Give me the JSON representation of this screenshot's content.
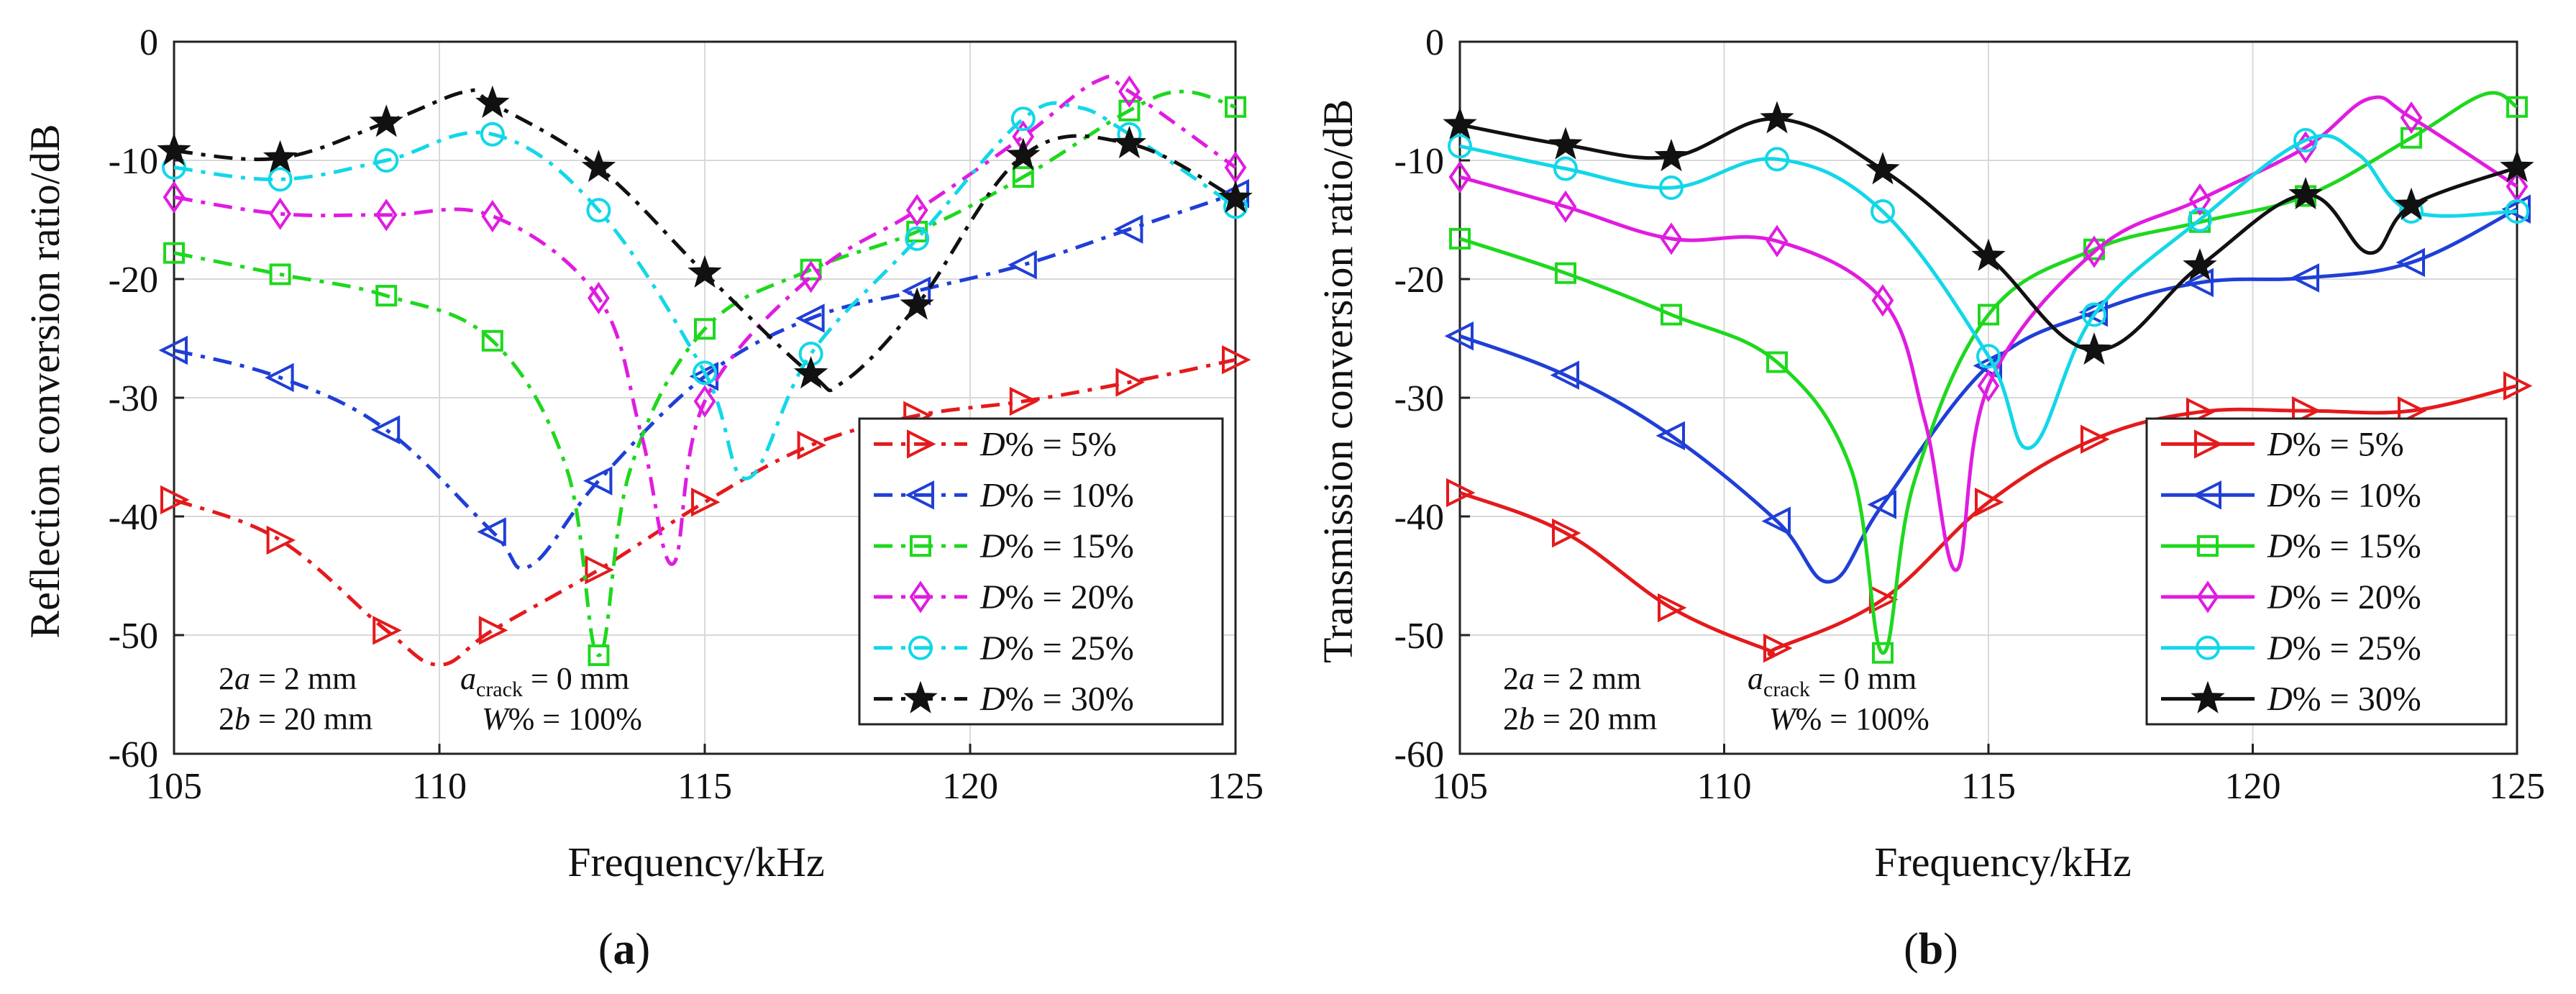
{
  "chart_data": [
    {
      "type": "line",
      "panel_label": "(a)",
      "panel_letter": "a",
      "ylabel": "Reflection conversion ratio/dB",
      "xlabel": "Frequency/kHz",
      "xlim": [
        105,
        125
      ],
      "ylim": [
        -60,
        0
      ],
      "xticks": [
        105,
        110,
        115,
        120,
        125
      ],
      "yticks": [
        0,
        -10,
        -20,
        -30,
        -40,
        -50,
        -60
      ],
      "grid": true,
      "line_style": "dashdot",
      "legend_position": "bottom-right",
      "annotations": [
        {
          "lines": [
            "2a = 2 mm",
            "2b = 20 mm"
          ]
        },
        {
          "lines": [
            "a_crack = 0 mm",
            "W% = 100%"
          ]
        }
      ],
      "series": [
        {
          "name": "D% = 5%",
          "label_value": "5%",
          "color": "#e41a1c",
          "marker": "triangle-right",
          "x": [
            105,
            107,
            109,
            110,
            111,
            113,
            115,
            117,
            119,
            121,
            123,
            125
          ],
          "y": [
            -38.6,
            -42,
            -49.6,
            -52.5,
            -49.6,
            -44.5,
            -38.8,
            -34,
            -31.5,
            -30.3,
            -28.7,
            -26.8
          ],
          "marker_x": [
            105,
            107,
            109,
            111,
            113,
            115,
            117,
            119,
            121,
            123,
            125
          ]
        },
        {
          "name": "D% = 10%",
          "label_value": "10%",
          "color": "#1f3fd6",
          "marker": "triangle-left",
          "x": [
            105,
            107,
            109,
            111,
            111.7,
            113,
            115,
            117,
            119,
            121,
            123,
            125
          ],
          "y": [
            -26,
            -28.3,
            -32.7,
            -41.3,
            -44.2,
            -37,
            -28.2,
            -23.3,
            -21,
            -18.8,
            -15.8,
            -12.8
          ],
          "marker_x": [
            105,
            107,
            109,
            111,
            113,
            115,
            117,
            119,
            121,
            123,
            125
          ]
        },
        {
          "name": "D% = 15%",
          "label_value": "15%",
          "color": "#1ed81e",
          "marker": "square",
          "x": [
            105,
            107,
            109,
            111,
            112.4,
            113,
            113.6,
            115,
            117,
            119,
            121,
            123,
            124,
            125
          ],
          "y": [
            -17.8,
            -19.6,
            -21.4,
            -25.2,
            -36,
            -51.7,
            -36,
            -24.2,
            -19.2,
            -16,
            -11.4,
            -5.8,
            -4.2,
            -5.5
          ],
          "marker_x": [
            105,
            107,
            109,
            111,
            113,
            115,
            117,
            119,
            121,
            123,
            125
          ]
        },
        {
          "name": "D% = 20%",
          "label_value": "20%",
          "color": "#e01ce0",
          "marker": "diamond",
          "x": [
            105,
            107,
            109,
            111,
            113,
            113.8,
            114.4,
            115,
            117,
            119,
            121,
            122.4,
            123,
            125
          ],
          "y": [
            -13.1,
            -14.5,
            -14.6,
            -14.7,
            -21.6,
            -33,
            -44,
            -30.3,
            -19.8,
            -14.2,
            -8,
            -3.3,
            -4.2,
            -10.6
          ],
          "marker_x": [
            105,
            107,
            109,
            111,
            113,
            115,
            117,
            119,
            121,
            123,
            125
          ]
        },
        {
          "name": "D% = 25%",
          "label_value": "25%",
          "color": "#12d7e8",
          "marker": "circle",
          "x": [
            105,
            107,
            109,
            111,
            113,
            115,
            115.8,
            117,
            119,
            121,
            122,
            123,
            125
          ],
          "y": [
            -10.6,
            -11.6,
            -10,
            -7.8,
            -14.2,
            -27.9,
            -36.8,
            -26.3,
            -16.6,
            -6.5,
            -5.5,
            -7.8,
            -13.9
          ],
          "marker_x": [
            105,
            107,
            109,
            111,
            113,
            115,
            117,
            119,
            121,
            123,
            125
          ]
        },
        {
          "name": "D% = 30%",
          "label_value": "30%",
          "color": "#111111",
          "marker": "star",
          "x": [
            105,
            107,
            109,
            110.5,
            111,
            113,
            115,
            117,
            117.6,
            119,
            121,
            123,
            125
          ],
          "y": [
            -9.2,
            -9.8,
            -6.8,
            -4.2,
            -5.2,
            -10.6,
            -19.5,
            -28,
            -28.7,
            -22.2,
            -9.6,
            -8.6,
            -13.2
          ],
          "marker_x": [
            105,
            107,
            109,
            111,
            113,
            115,
            117,
            119,
            121,
            123,
            125
          ]
        }
      ]
    },
    {
      "type": "line",
      "panel_label": "(b)",
      "panel_letter": "b",
      "ylabel": "Transmission conversion ratio/dB",
      "xlabel": "Frequency/kHz",
      "xlim": [
        105,
        125
      ],
      "ylim": [
        -60,
        0
      ],
      "xticks": [
        105,
        110,
        115,
        120,
        125
      ],
      "yticks": [
        0,
        -10,
        -20,
        -30,
        -40,
        -50,
        -60
      ],
      "grid": true,
      "line_style": "solid",
      "legend_position": "bottom-right",
      "annotations": [
        {
          "lines": [
            "2a = 2 mm",
            "2b = 20 mm"
          ]
        },
        {
          "lines": [
            "a_crack = 0 mm",
            "W% = 100%"
          ]
        }
      ],
      "series": [
        {
          "name": "D% = 5%",
          "label_value": "5%",
          "color": "#e41a1c",
          "marker": "triangle-right",
          "x": [
            105,
            107,
            109,
            110.8,
            111,
            113,
            115,
            117,
            119,
            121,
            123,
            125
          ],
          "y": [
            -38,
            -41.4,
            -47.7,
            -51.2,
            -51.1,
            -47,
            -38.8,
            -33.5,
            -31.2,
            -31.1,
            -31.1,
            -29
          ],
          "marker_x": [
            105,
            107,
            109,
            111,
            113,
            115,
            117,
            119,
            121,
            123,
            125
          ]
        },
        {
          "name": "D% = 10%",
          "label_value": "10%",
          "color": "#1f3fd6",
          "marker": "triangle-left",
          "x": [
            105,
            107,
            109,
            111,
            112,
            113,
            115,
            117,
            119,
            121,
            123,
            125
          ],
          "y": [
            -24.8,
            -28.1,
            -33.2,
            -40.4,
            -45.5,
            -39,
            -27.3,
            -22.8,
            -20.3,
            -19.9,
            -18.6,
            -14.1
          ],
          "marker_x": [
            105,
            107,
            109,
            111,
            113,
            115,
            117,
            119,
            121,
            123,
            125
          ]
        },
        {
          "name": "D% = 15%",
          "label_value": "15%",
          "color": "#1ed81e",
          "marker": "square",
          "x": [
            105,
            107,
            109,
            111,
            112.4,
            113,
            113.6,
            115,
            117,
            119,
            121,
            123,
            124.4,
            125
          ],
          "y": [
            -16.6,
            -19.5,
            -23,
            -27,
            -36,
            -51.5,
            -37,
            -23,
            -17.5,
            -15.2,
            -13,
            -8.1,
            -4.4,
            -5.5
          ],
          "marker_x": [
            105,
            107,
            109,
            111,
            113,
            115,
            117,
            119,
            121,
            123,
            125
          ]
        },
        {
          "name": "D% = 20%",
          "label_value": "20%",
          "color": "#e01ce0",
          "marker": "diamond",
          "x": [
            105,
            107,
            109,
            111,
            113,
            113.8,
            114.4,
            115,
            117,
            119,
            121,
            122.2,
            123,
            125
          ],
          "y": [
            -11.4,
            -13.9,
            -16.6,
            -16.8,
            -21.8,
            -32,
            -44.5,
            -29,
            -17.7,
            -13.3,
            -8.9,
            -4.8,
            -6.4,
            -12.2
          ],
          "marker_x": [
            105,
            107,
            109,
            111,
            113,
            115,
            117,
            119,
            121,
            123,
            125
          ]
        },
        {
          "name": "D% = 25%",
          "label_value": "25%",
          "color": "#12d7e8",
          "marker": "circle",
          "x": [
            105,
            107,
            109,
            111,
            113,
            115,
            115.8,
            117,
            119,
            121,
            122,
            123,
            125
          ],
          "y": [
            -8.8,
            -10.7,
            -12.3,
            -9.9,
            -14.3,
            -26.5,
            -34.2,
            -23,
            -15,
            -8.3,
            -9.5,
            -14.3,
            -14.3
          ],
          "marker_x": [
            105,
            107,
            109,
            111,
            113,
            115,
            117,
            119,
            121,
            123,
            125
          ]
        },
        {
          "name": "D% = 30%",
          "label_value": "30%",
          "color": "#111111",
          "marker": "star",
          "x": [
            105,
            107,
            109,
            111,
            113,
            115,
            117,
            119,
            121,
            122.2,
            123,
            125
          ],
          "y": [
            -7,
            -8.7,
            -9.7,
            -6.5,
            -10.8,
            -18.1,
            -26,
            -18.9,
            -12.9,
            -17.8,
            -13.8,
            -10.6
          ],
          "marker_x": [
            105,
            107,
            109,
            111,
            113,
            115,
            117,
            119,
            121,
            123,
            125
          ]
        }
      ]
    }
  ]
}
